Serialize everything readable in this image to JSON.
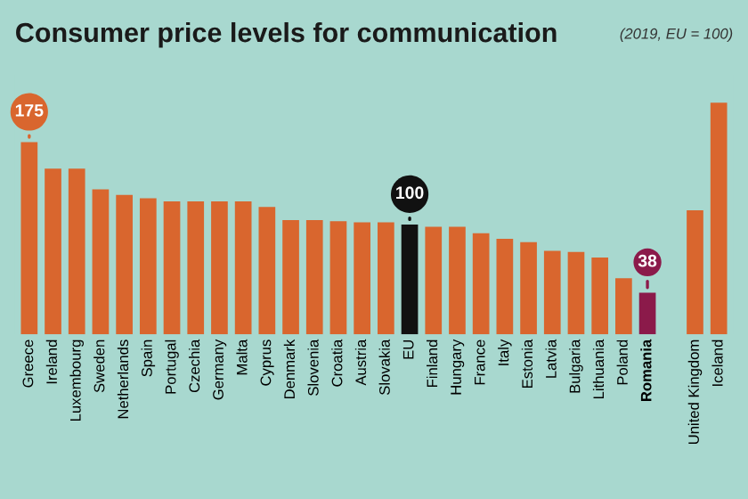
{
  "chart_data": {
    "type": "bar",
    "title": "Consumer price levels for communication",
    "subtitle": "(2019, EU = 100)",
    "categories": [
      "Greece",
      "Ireland",
      "Luxembourg",
      "Sweden",
      "Netherlands",
      "Spain",
      "Portugal",
      "Czechia",
      "Germany",
      "Malta",
      "Cyprus",
      "Denmark",
      "Slovenia",
      "Croatia",
      "Austria",
      "Slovakia",
      "EU",
      "Finland",
      "Hungary",
      "France",
      "Italy",
      "Estonia",
      "Latvia",
      "Bulgaria",
      "Lithuania",
      "Poland",
      "Romania",
      null,
      "United Kingdom",
      "Iceland"
    ],
    "values": [
      175,
      151,
      151,
      132,
      127,
      124,
      121,
      121,
      121,
      121,
      116,
      104,
      104,
      103,
      102,
      102,
      100,
      98,
      98,
      92,
      87,
      84,
      76,
      75,
      70,
      51,
      38,
      null,
      113,
      211
    ],
    "colors": [
      "#d9662e",
      "#d9662e",
      "#d9662e",
      "#d9662e",
      "#d9662e",
      "#d9662e",
      "#d9662e",
      "#d9662e",
      "#d9662e",
      "#d9662e",
      "#d9662e",
      "#d9662e",
      "#d9662e",
      "#d9662e",
      "#d9662e",
      "#d9662e",
      "#111111",
      "#d9662e",
      "#d9662e",
      "#d9662e",
      "#d9662e",
      "#d9662e",
      "#d9662e",
      "#d9662e",
      "#d9662e",
      "#d9662e",
      "#8b1a4a",
      "#d9662e",
      "#d9662e",
      "#d9662e"
    ],
    "value_labels": [
      "175",
      null,
      null,
      null,
      null,
      null,
      null,
      null,
      null,
      null,
      null,
      null,
      null,
      null,
      null,
      null,
      "100",
      null,
      null,
      null,
      null,
      null,
      null,
      null,
      null,
      null,
      "38",
      null,
      null,
      null
    ]
  }
}
